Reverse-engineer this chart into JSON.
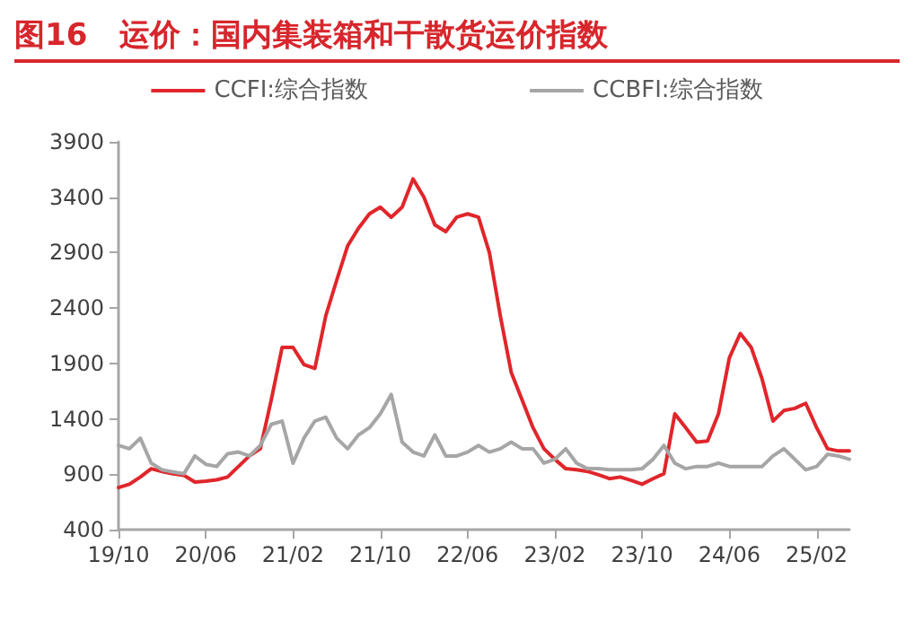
{
  "chart_data": {
    "type": "line",
    "title": "图16   运价：国内集装箱和干散货运价指数",
    "categories": [
      "19/10",
      null,
      null,
      null,
      null,
      null,
      null,
      null,
      "20/06",
      null,
      null,
      null,
      null,
      null,
      null,
      null,
      "21/02",
      null,
      null,
      null,
      null,
      null,
      null,
      null,
      "21/10",
      null,
      null,
      null,
      null,
      null,
      null,
      null,
      "22/06",
      null,
      null,
      null,
      null,
      null,
      null,
      null,
      "23/02",
      null,
      null,
      null,
      null,
      null,
      null,
      null,
      "23/10",
      null,
      null,
      null,
      null,
      null,
      null,
      null,
      "24/06",
      null,
      null,
      null,
      null,
      null,
      null,
      null,
      "25/02",
      null,
      null,
      null
    ],
    "series": [
      {
        "name": "CCFI:综合指数",
        "color": "#e0262b",
        "values": [
          780,
          810,
          875,
          950,
          925,
          905,
          890,
          830,
          837,
          850,
          875,
          970,
          1065,
          1130,
          1570,
          2045,
          2045,
          1890,
          1855,
          2330,
          2650,
          2960,
          3120,
          3250,
          3310,
          3220,
          3310,
          3565,
          3400,
          3150,
          3090,
          3220,
          3250,
          3220,
          2900,
          2330,
          1820,
          1570,
          1320,
          1130,
          1035,
          950,
          940,
          925,
          895,
          860,
          875,
          845,
          810,
          860,
          905,
          1445,
          1320,
          1190,
          1200,
          1445,
          1950,
          2170,
          2045,
          1760,
          1380,
          1475,
          1495,
          1540,
          1320,
          1130,
          1110,
          1110
        ]
      },
      {
        "name": "CCBFI:综合指数",
        "color": "#a6a6a6",
        "values": [
          1160,
          1130,
          1225,
          1000,
          940,
          920,
          905,
          1065,
          990,
          970,
          1085,
          1100,
          1065,
          1160,
          1350,
          1380,
          1000,
          1225,
          1380,
          1415,
          1225,
          1130,
          1255,
          1320,
          1445,
          1620,
          1190,
          1100,
          1065,
          1255,
          1065,
          1065,
          1100,
          1160,
          1100,
          1130,
          1190,
          1130,
          1130,
          1000,
          1035,
          1130,
          1000,
          950,
          950,
          940,
          940,
          940,
          950,
          1035,
          1160,
          1000,
          950,
          970,
          970,
          1000,
          970,
          970,
          970,
          970,
          1065,
          1130,
          1035,
          940,
          970,
          1080,
          1065,
          1035
        ]
      }
    ],
    "ylim": [
      400,
      3900
    ],
    "yticks": [
      400,
      900,
      1400,
      1900,
      2400,
      2900,
      3400,
      3900
    ],
    "grid": false,
    "legend": "top",
    "marker": "none",
    "line_style": "solid"
  }
}
